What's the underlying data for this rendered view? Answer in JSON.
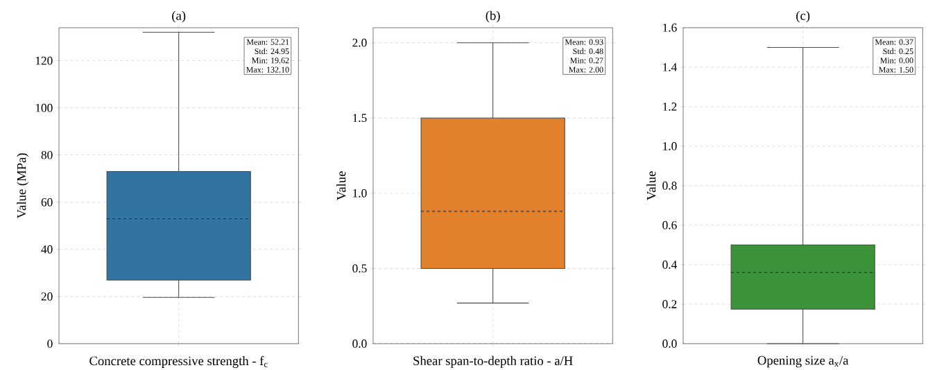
{
  "chart_data": [
    {
      "type": "box",
      "title": "(a)",
      "xlabel": "Concrete compressive strength - f$_{c}$",
      "ylabel": "Value (MPa)",
      "categories": [
        null
      ],
      "color": "#3274a1",
      "boxes": [
        {
          "low": 19.62,
          "q1": 27,
          "median": 53,
          "q3": 73,
          "high": 132.1
        }
      ],
      "ylim": [
        0,
        134
      ],
      "yticks": [
        0,
        20,
        40,
        60,
        80,
        100,
        120
      ],
      "grid": true,
      "annotations": [
        "Mean: 52.21",
        "Std: 24.95",
        "Min: 19.62",
        "Max: 132.10"
      ]
    },
    {
      "type": "box",
      "title": "(b)",
      "xlabel": "Shear span-to-depth ratio - a/H",
      "ylabel": "Value",
      "categories": [
        null
      ],
      "color": "#e1812c",
      "boxes": [
        {
          "low": 0.27,
          "q1": 0.5,
          "median": 0.88,
          "q3": 1.5,
          "high": 2.0
        }
      ],
      "ylim": [
        0,
        2.1
      ],
      "yticks": [
        {
          "value": 0,
          "label": "0.0"
        },
        0.5,
        {
          "value": 1,
          "label": "1.0"
        },
        1.5,
        {
          "value": 2,
          "label": "2.0"
        }
      ],
      "grid": true,
      "annotations": [
        "Mean: 0.93",
        "Std: 0.48",
        "Min: 0.27",
        "Max: 2.00"
      ]
    },
    {
      "type": "box",
      "title": "(c)",
      "xlabel": "Opening size a$_{x}$/a",
      "ylabel": "Value",
      "categories": [
        null
      ],
      "color": "#3a923a",
      "boxes": [
        {
          "low": 0.0,
          "q1": 0.175,
          "median": 0.36,
          "q3": 0.5,
          "high": 1.5
        }
      ],
      "ylim": [
        0,
        1.6
      ],
      "yticks": [
        {
          "value": 0,
          "label": "0.0"
        },
        0.2,
        0.4,
        0.6,
        0.8,
        {
          "value": 1,
          "label": "1.0"
        },
        1.2,
        1.4,
        1.6
      ],
      "grid": true,
      "annotations": [
        "Mean: 0.37",
        "Std: 0.25",
        "Min: 0.00",
        "Max: 1.50"
      ]
    }
  ]
}
